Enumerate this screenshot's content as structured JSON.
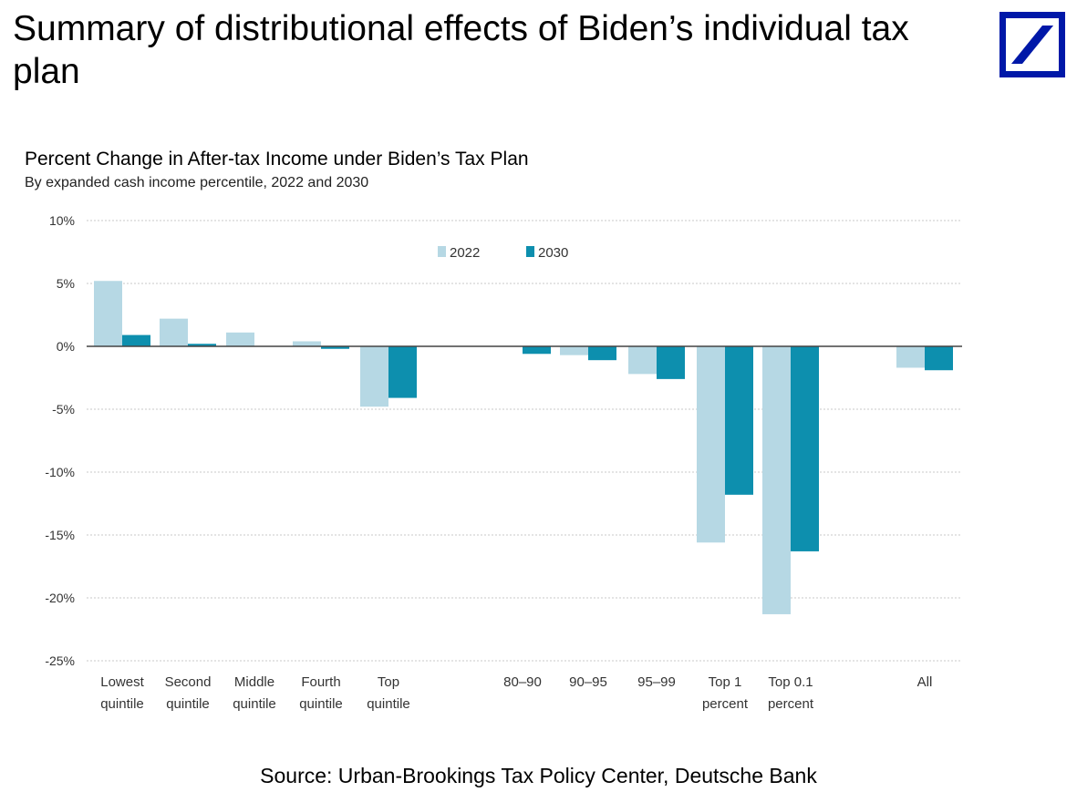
{
  "slide": {
    "title": "Summary of distributional effects of Biden’s individual tax plan",
    "source": "Source: Urban-Brookings Tax Policy Center, Deutsche Bank",
    "logo": "deutsche-bank-logo"
  },
  "colors": {
    "series_2022": "#b6d8e4",
    "series_2030": "#0d8fae",
    "grid": "#c8c8c8",
    "zero_line": "#444444",
    "brand": "#0018a8"
  },
  "chart_data": {
    "type": "bar",
    "title": "Percent Change in After-tax Income under Biden’s Tax Plan",
    "subtitle": "By expanded cash income percentile, 2022 and 2030",
    "xlabel": "",
    "ylabel": "",
    "ylim": [
      -25,
      10
    ],
    "yticks": [
      10,
      5,
      0,
      -5,
      -10,
      -15,
      -20,
      -25
    ],
    "ytick_labels": [
      "10%",
      "5%",
      "0%",
      "-5%",
      "-10%",
      "-15%",
      "-20%",
      "-25%"
    ],
    "grid": true,
    "legend_position": "top-center",
    "categories": [
      [
        "Lowest",
        "quintile"
      ],
      [
        "Second",
        "quintile"
      ],
      [
        "Middle",
        "quintile"
      ],
      [
        "Fourth",
        "quintile"
      ],
      [
        "Top",
        "quintile"
      ],
      [
        "80–90"
      ],
      [
        "90–95"
      ],
      [
        "95–99"
      ],
      [
        "Top 1",
        "percent"
      ],
      [
        "Top 0.1",
        "percent"
      ],
      [
        "All"
      ]
    ],
    "series": [
      {
        "name": "2022",
        "values": [
          5.2,
          2.2,
          1.1,
          0.4,
          -4.8,
          0.0,
          -0.7,
          -2.2,
          -15.6,
          -21.3,
          -1.7
        ]
      },
      {
        "name": "2030",
        "values": [
          0.9,
          0.2,
          0.0,
          -0.2,
          -4.1,
          -0.6,
          -1.1,
          -2.6,
          -11.8,
          -16.3,
          -1.9
        ]
      }
    ]
  }
}
